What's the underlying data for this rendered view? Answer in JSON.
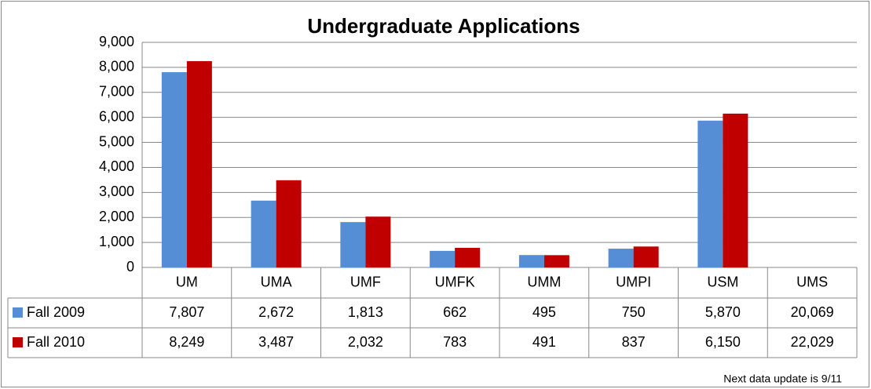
{
  "chart_data": {
    "type": "bar",
    "title": "Undergraduate Applications",
    "categories": [
      "UM",
      "UMA",
      "UMF",
      "UMFK",
      "UMM",
      "UMPI",
      "USM",
      "UMS"
    ],
    "series": [
      {
        "name": "Fall 2009",
        "color": "#558ed5",
        "values": [
          7807,
          2672,
          1813,
          662,
          495,
          750,
          5870,
          20069
        ],
        "value_labels": [
          "7,807",
          "2,672",
          "1,813",
          "662",
          "495",
          "750",
          "5,870",
          "20,069"
        ]
      },
      {
        "name": "Fall 2010",
        "color": "#c00000",
        "values": [
          8249,
          3487,
          2032,
          783,
          491,
          837,
          6150,
          22029
        ],
        "value_labels": [
          "8,249",
          "3,487",
          "2,032",
          "783",
          "491",
          "837",
          "6,150",
          "22,029"
        ]
      }
    ],
    "ylim": [
      0,
      9000
    ],
    "yticks": [
      0,
      {
        "value": 1000,
        "label": "1,000"
      },
      {
        "value": 2000,
        "label": "2,000"
      },
      {
        "value": 3000,
        "label": "3,000"
      },
      {
        "value": 4000,
        "label": "4,000"
      },
      {
        "value": 5000,
        "label": "5,000"
      },
      {
        "value": 6000,
        "label": "6,000"
      },
      {
        "value": 7000,
        "label": "7,000"
      },
      {
        "value": 8000,
        "label": "8,000"
      },
      {
        "value": 9000,
        "label": "9,000"
      }
    ],
    "grid": true,
    "annotation": "Next data update is 9/11"
  }
}
